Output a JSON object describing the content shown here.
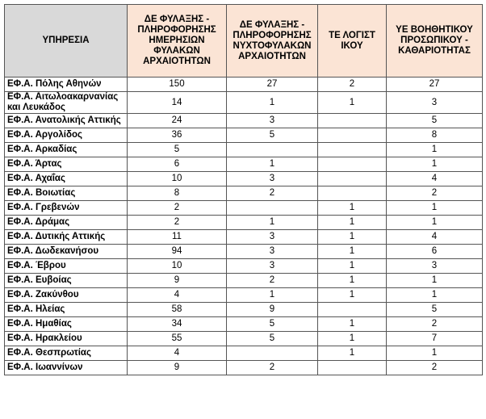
{
  "table": {
    "header": [
      "ΥΠΗΡΕΣΙΑ",
      "ΔΕ ΦΥΛΑΞΗΣ - ΠΛΗΡΟΦΟΡΗΣΗΣ ΗΜΕΡΗΣΙΩΝ ΦΥΛΑΚΩΝ ΑΡΧΑΙΟΤΗΤΩΝ",
      "ΔΕ ΦΥΛΑΞΗΣ - ΠΛΗΡΟΦΟΡΗΣΗΣ ΝΥΧΤΟΦΥΛΑΚΩΝ ΑΡΧΑΙΟΤΗΤΩΝ",
      "ΤΕ ΛΟΓΙΣΤΙΚΟΥ",
      "ΥΕ ΒΟΗΘΗΤΙΚΟΥ ΠΡΟΣΩΠΙΚΟΥ - ΚΑΘΑΡΙΟΤΗΤΑΣ"
    ],
    "rows": [
      [
        "ΕΦ.Α. Πόλης Αθηνών",
        150,
        27,
        2,
        27
      ],
      [
        "ΕΦ.Α. Αιτωλοακαρνανίας και Λευκάδος",
        14,
        1,
        1,
        3
      ],
      [
        "ΕΦ.Α. Ανατολικής Αττικής",
        24,
        3,
        null,
        5
      ],
      [
        "ΕΦ.Α. Αργολίδος",
        36,
        5,
        null,
        8
      ],
      [
        "ΕΦ.Α. Αρκαδίας",
        5,
        null,
        null,
        1
      ],
      [
        "ΕΦ.Α. Άρτας",
        6,
        1,
        null,
        1
      ],
      [
        "ΕΦ.Α. Αχαΐας",
        10,
        3,
        null,
        4
      ],
      [
        "ΕΦ.Α. Βοιωτίας",
        8,
        2,
        null,
        2
      ],
      [
        "ΕΦ.Α. Γρεβενών",
        2,
        null,
        1,
        1
      ],
      [
        "ΕΦ.Α. Δράμας",
        2,
        1,
        1,
        1
      ],
      [
        "ΕΦ.Α. Δυτικής Αττικής",
        11,
        3,
        1,
        4
      ],
      [
        "ΕΦ.Α. Δωδεκανήσου",
        94,
        3,
        1,
        6
      ],
      [
        "ΕΦ.Α. Έβρου",
        10,
        3,
        1,
        3
      ],
      [
        "ΕΦ.Α. Ευβοίας",
        9,
        2,
        1,
        1
      ],
      [
        "ΕΦ.Α. Ζακύνθου",
        4,
        1,
        1,
        1
      ],
      [
        "ΕΦ.Α. Ηλείας",
        58,
        9,
        null,
        5
      ],
      [
        "ΕΦ.Α. Ημαθίας",
        34,
        5,
        1,
        2
      ],
      [
        "ΕΦ.Α. Ηρακλείου",
        55,
        5,
        1,
        7
      ],
      [
        "ΕΦ.Α. Θεσπρωτίας",
        4,
        null,
        1,
        1
      ],
      [
        "ΕΦ.Α. Ιωαννίνων",
        9,
        2,
        null,
        2
      ]
    ]
  }
}
